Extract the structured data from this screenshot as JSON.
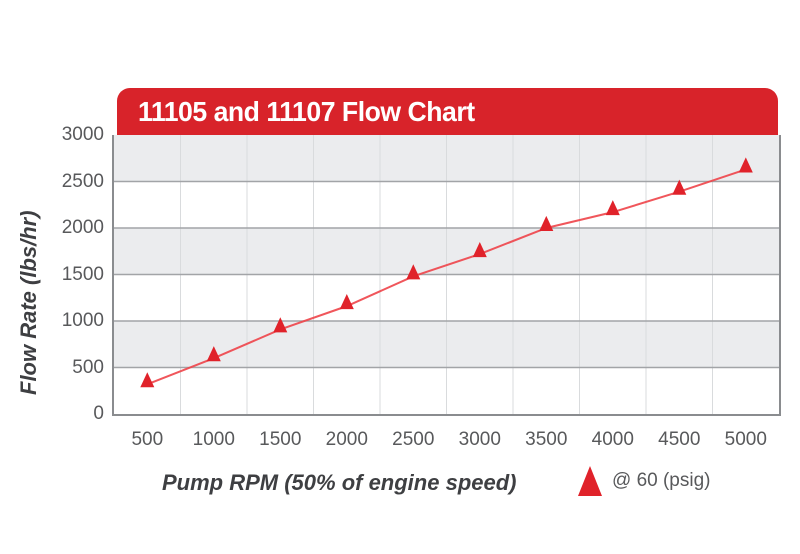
{
  "chart_data": {
    "type": "line",
    "title": "11105 and 11107 Flow Chart",
    "xlabel": "Pump RPM (50% of engine speed)",
    "ylabel": "Flow Rate (lbs/hr)",
    "x": [
      500,
      1000,
      1500,
      2000,
      2500,
      3000,
      3500,
      4000,
      4500,
      5000
    ],
    "x_tick_labels": [
      "500",
      "1000",
      "1500",
      "2000",
      "2500",
      "3000",
      "3500",
      "4000",
      "4500",
      "5000"
    ],
    "y_ticks": [
      3000,
      2500,
      2000,
      1500,
      1000,
      500,
      0
    ],
    "ylim": [
      0,
      3000
    ],
    "series": [
      {
        "name": "@ 60 (psig)",
        "marker": "triangle-up",
        "values": [
          320,
          600,
          910,
          1160,
          1480,
          1720,
          2000,
          2170,
          2390,
          2630
        ]
      }
    ],
    "grid": {
      "horizontal": true,
      "vertical": true,
      "background_bands": "alternating gray/white"
    },
    "legend_position": "below-right"
  },
  "legend": {
    "label": "@ 60 (psig)"
  },
  "colors": {
    "header_red": "#d8232a",
    "header_text": "#ffffff",
    "marker_red": "#e0222a",
    "line_red": "#ee4449",
    "band_gray": "#ebecee",
    "h_grid": "#a2a4a7",
    "v_grid": "#d9dbdd",
    "plot_border": "#8a8c8f",
    "tick_text": "#58595b",
    "axis_title_text": "#3e3f42"
  }
}
